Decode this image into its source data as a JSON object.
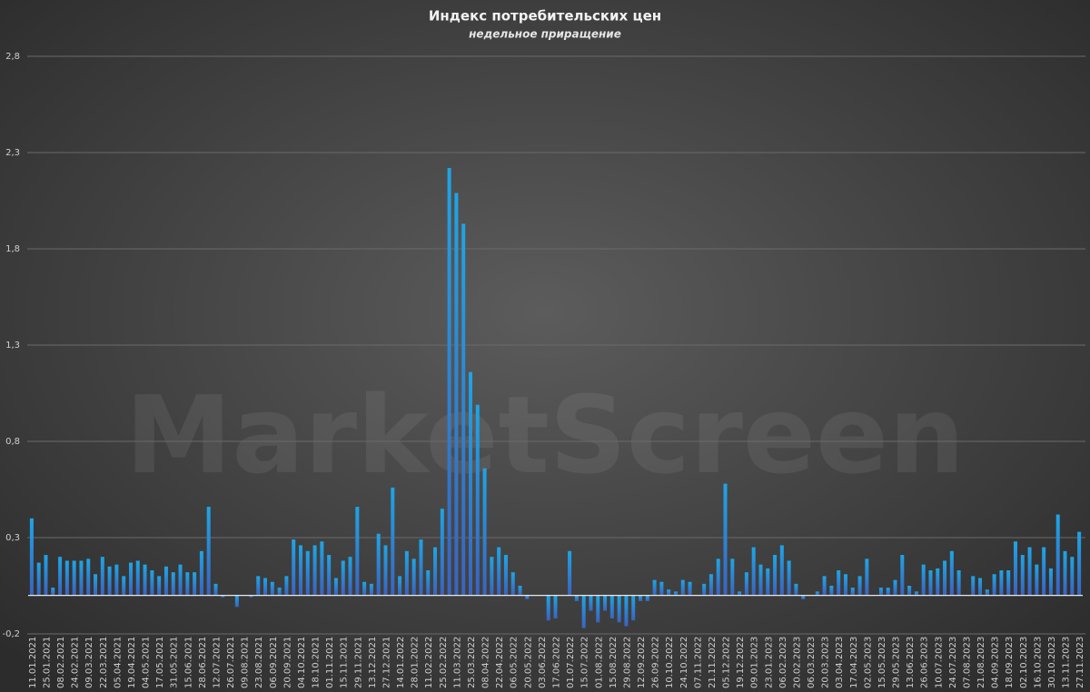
{
  "chart_data": {
    "type": "bar",
    "title": "Индекс потребительских цен",
    "subtitle": "недельное приращение",
    "watermark": "MarketScreen",
    "color": "#1ea5e6",
    "grid": true,
    "ylim": [
      -0.2,
      2.8
    ],
    "yticks": [
      {
        "value": -0.2,
        "label": "-0,2"
      },
      {
        "value": 0.3,
        "label": "0,3"
      },
      {
        "value": 0.8,
        "label": "0,8"
      },
      {
        "value": 1.3,
        "label": "1,3"
      },
      {
        "value": 1.8,
        "label": "1,8"
      },
      {
        "value": 2.3,
        "label": "2,3"
      },
      {
        "value": 2.8,
        "label": "2,8"
      }
    ],
    "categories": [
      "11.01.2021",
      null,
      "25.01.2021",
      null,
      "08.02.2021",
      null,
      "24.02.2021",
      null,
      "09.03.2021",
      null,
      "22.03.2021",
      null,
      "05.04.2021",
      null,
      "19.04.2021",
      null,
      "04.05.2021",
      null,
      "17.05.2021",
      null,
      "31.05.2021",
      null,
      "15.06.2021",
      null,
      "28.06.2021",
      null,
      "12.07.2021",
      null,
      "26.07.2021",
      null,
      "09.08.2021",
      null,
      "23.08.2021",
      null,
      "06.09.2021",
      null,
      "20.09.2021",
      null,
      "04.10.2021",
      null,
      "18.10.2021",
      null,
      "01.11.2021",
      null,
      "15.11.2021",
      null,
      "29.11.2021",
      null,
      "13.12.2021",
      null,
      "27.12.2021",
      null,
      "14.01.2022",
      null,
      "28.01.2022",
      null,
      "11.02.2022",
      null,
      "25.02.2022",
      null,
      "11.03.2022",
      null,
      "25.03.2022",
      null,
      "08.04.2022",
      null,
      "22.04.2022",
      null,
      "06.05.2022",
      null,
      "20.05.2022",
      null,
      "03.06.2022",
      null,
      "17.06.2022",
      null,
      "01.07.2022",
      null,
      "15.07.2022",
      null,
      "01.08.2022",
      null,
      "15.08.2022",
      null,
      "29.08.2022",
      null,
      "12.09.2022",
      null,
      "26.09.2022",
      null,
      "10.10.2022",
      null,
      "24.10.2022",
      null,
      "07.11.2022",
      null,
      "21.11.2022",
      null,
      "05.12.2022",
      null,
      "19.12.2022",
      null,
      "09.01.2023",
      null,
      "23.01.2023",
      null,
      "06.02.2023",
      null,
      "20.02.2023",
      null,
      "06.03.2023",
      null,
      "20.03.2023",
      null,
      "03.04.2023",
      null,
      "17.04.2023",
      null,
      "02.05.2023",
      null,
      "15.05.2023",
      null,
      "29.05.2023",
      null,
      "13.06.2023",
      null,
      "26.06.2023",
      null,
      "10.07.2023",
      null,
      "24.07.2023",
      null,
      "07.08.2023",
      null,
      "21.08.2023",
      null,
      "04.09.2023",
      null,
      "18.09.2023",
      null,
      "02.10.2023",
      null,
      "16.10.2023",
      null,
      "30.10.2023",
      null,
      "13.11.2023",
      null,
      "27.11.2023"
    ],
    "values": [
      0.4,
      0.17,
      0.21,
      0.04,
      0.2,
      0.18,
      0.18,
      0.18,
      0.19,
      0.11,
      0.2,
      0.15,
      0.16,
      0.1,
      0.17,
      0.18,
      0.16,
      0.13,
      0.1,
      0.15,
      0.12,
      0.16,
      0.12,
      0.12,
      0.23,
      0.46,
      0.06,
      -0.01,
      0.0,
      -0.06,
      0.0,
      -0.01,
      0.1,
      0.09,
      0.07,
      0.04,
      0.1,
      0.29,
      0.26,
      0.23,
      0.26,
      0.28,
      0.21,
      0.09,
      0.18,
      0.2,
      0.46,
      0.07,
      0.06,
      0.32,
      0.26,
      0.56,
      0.1,
      0.23,
      0.19,
      0.29,
      0.13,
      0.25,
      0.45,
      2.22,
      2.09,
      1.93,
      1.16,
      0.99,
      0.66,
      0.2,
      0.25,
      0.21,
      0.12,
      0.05,
      -0.02,
      0.0,
      0.0,
      -0.13,
      -0.12,
      0.0,
      0.23,
      -0.03,
      -0.17,
      -0.08,
      -0.14,
      -0.08,
      -0.12,
      -0.14,
      -0.16,
      -0.13,
      -0.03,
      -0.03,
      0.08,
      0.07,
      0.03,
      0.02,
      0.08,
      0.07,
      0.0,
      0.06,
      0.11,
      0.19,
      0.58,
      0.19,
      0.02,
      0.12,
      0.25,
      0.16,
      0.14,
      0.21,
      0.26,
      0.18,
      0.06,
      -0.02,
      0.0,
      0.02,
      0.1,
      0.05,
      0.13,
      0.11,
      0.04,
      0.1,
      0.19,
      0.0,
      0.04,
      0.04,
      0.08,
      0.21,
      0.05,
      0.02,
      0.16,
      0.13,
      0.14,
      0.18,
      0.23,
      0.13,
      0.0,
      0.1,
      0.09,
      0.03,
      0.11,
      0.13,
      0.13,
      0.28,
      0.21,
      0.25,
      0.16,
      0.25,
      0.14,
      0.42,
      0.23,
      0.2,
      0.33
    ]
  }
}
